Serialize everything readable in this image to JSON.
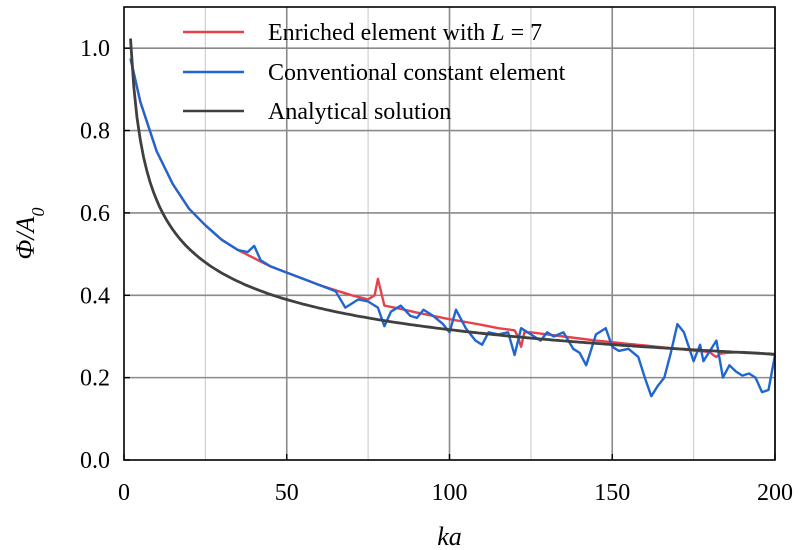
{
  "chart_data": {
    "type": "line",
    "xlabel": "ka",
    "ylabel": "Φ/A0",
    "xlim": [
      0,
      200
    ],
    "ylim": [
      0,
      1.1
    ],
    "x_ticks": [
      0,
      50,
      100,
      150,
      200
    ],
    "y_ticks": [
      0.0,
      0.2,
      0.4,
      0.6,
      0.8,
      1.0
    ],
    "x_tick_labels": [
      "0",
      "50",
      "100",
      "150",
      "200"
    ],
    "y_tick_labels": [
      "0.0",
      "0.2",
      "0.4",
      "0.6",
      "0.8",
      "1.0"
    ],
    "x_minor_ticks": [
      25,
      75,
      125,
      175
    ],
    "grid": true,
    "legend_placement": "top",
    "series": [
      {
        "name": "Enriched element with L = 7",
        "legend_label": {
          "prefix": "Enriched element with ",
          "italic": "L",
          "suffix": " = 7"
        },
        "color": "#e8414a",
        "x": [
          2,
          5,
          10,
          15,
          20,
          25,
          30,
          35,
          40,
          45,
          50,
          55,
          60,
          65,
          70,
          75,
          77,
          78,
          80,
          85,
          90,
          95,
          100,
          105,
          110,
          115,
          120,
          121,
          122,
          123,
          125,
          130,
          135,
          140,
          145,
          150,
          155,
          160,
          165,
          170,
          175,
          180,
          181,
          182,
          183,
          185,
          190,
          195,
          200
        ],
        "y": [
          0.975,
          0.87,
          0.75,
          0.67,
          0.61,
          0.57,
          0.535,
          0.51,
          0.49,
          0.47,
          0.455,
          0.44,
          0.425,
          0.412,
          0.4,
          0.39,
          0.4,
          0.44,
          0.375,
          0.367,
          0.358,
          0.35,
          0.342,
          0.335,
          0.328,
          0.32,
          0.315,
          0.3,
          0.275,
          0.31,
          0.31,
          0.305,
          0.3,
          0.295,
          0.29,
          0.286,
          0.282,
          0.278,
          0.274,
          0.27,
          0.266,
          0.262,
          0.255,
          0.25,
          0.258,
          0.26,
          0.262,
          0.26,
          0.255
        ]
      },
      {
        "name": "Conventional constant element",
        "color": "#1f66d1",
        "x": [
          2,
          5,
          10,
          15,
          20,
          25,
          30,
          35,
          38,
          40,
          42,
          45,
          50,
          55,
          60,
          65,
          68,
          70,
          72,
          75,
          78,
          80,
          82,
          85,
          88,
          90,
          92,
          95,
          98,
          100,
          102,
          105,
          108,
          110,
          112,
          115,
          118,
          120,
          122,
          125,
          128,
          130,
          132,
          135,
          138,
          140,
          142,
          145,
          148,
          150,
          152,
          155,
          158,
          160,
          162,
          164,
          166,
          168,
          170,
          172,
          175,
          177,
          178,
          180,
          182,
          184,
          186,
          188,
          190,
          192,
          194,
          196,
          198,
          200
        ],
        "y": [
          0.975,
          0.87,
          0.75,
          0.67,
          0.61,
          0.57,
          0.535,
          0.51,
          0.505,
          0.52,
          0.485,
          0.47,
          0.455,
          0.44,
          0.425,
          0.41,
          0.37,
          0.38,
          0.39,
          0.385,
          0.37,
          0.325,
          0.36,
          0.375,
          0.35,
          0.345,
          0.365,
          0.35,
          0.33,
          0.31,
          0.365,
          0.32,
          0.29,
          0.28,
          0.31,
          0.305,
          0.31,
          0.255,
          0.32,
          0.305,
          0.29,
          0.31,
          0.3,
          0.31,
          0.27,
          0.26,
          0.23,
          0.305,
          0.32,
          0.275,
          0.265,
          0.27,
          0.25,
          0.2,
          0.155,
          0.18,
          0.2,
          0.26,
          0.33,
          0.31,
          0.24,
          0.28,
          0.24,
          0.265,
          0.29,
          0.2,
          0.23,
          0.215,
          0.205,
          0.21,
          0.2,
          0.165,
          0.17,
          0.255
        ]
      },
      {
        "name": "Analytical solution",
        "color": "#404040",
        "function": "1.26*ka^(-0.3)"
      }
    ]
  }
}
